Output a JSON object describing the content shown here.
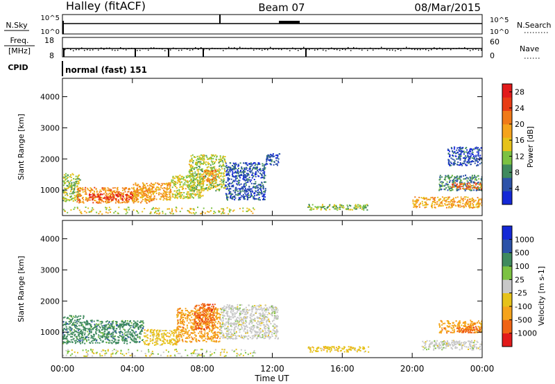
{
  "header": {
    "station": "Halley (fitACF)",
    "beam": "Beam 07",
    "date": "08/Mar/2015"
  },
  "strips": {
    "nsky": {
      "label": "N.Sky",
      "ticks_left": [
        "10^5",
        "10^0"
      ],
      "ticks_right": [
        "10^5",
        "10^0"
      ],
      "right_label": "N.Search"
    },
    "freq": {
      "label": "Freq.",
      "unit": "[MHz]",
      "ticks_left": [
        "18",
        "8"
      ],
      "ticks_right": [
        "60",
        "0"
      ],
      "right_label": "Nave"
    },
    "cpid": {
      "label": "CPID",
      "text": "normal (fast) 151"
    }
  },
  "colors": {
    "power": [
      "#1428d6",
      "#2c52a8",
      "#3f8a5e",
      "#7cc242",
      "#e6c21a",
      "#f5a31c",
      "#f07a18",
      "#e83c14",
      "#e21a1a"
    ],
    "velocity": [
      "#e21a1a",
      "#f06414",
      "#f5a31c",
      "#e6c21a",
      "#c8c8c8",
      "#7cc242",
      "#3f8a5e",
      "#2c52a8",
      "#1428d6"
    ]
  },
  "chart_data": [
    {
      "type": "heatmap",
      "name": "power",
      "xlabel": "",
      "ylabel": "Slant Range [km]",
      "x_ticks": [
        "00:00",
        "04:00",
        "08:00",
        "12:00",
        "16:00",
        "20:00",
        "00:00"
      ],
      "xlim_hours": [
        0,
        24
      ],
      "y_ticks": [
        "1000",
        "2000",
        "3000",
        "4000"
      ],
      "ylim": [
        180,
        4590
      ],
      "colorbar": {
        "label": "Power [dB]",
        "ticks": [
          "4",
          "8",
          "12",
          "16",
          "20",
          "24",
          "28"
        ],
        "range": [
          0,
          30
        ]
      },
      "echo_regions": [
        {
          "t0": 0.0,
          "t1": 1.0,
          "r0": 650,
          "r1": 1550,
          "level": 12
        },
        {
          "t0": 0.8,
          "t1": 5.2,
          "r0": 600,
          "r1": 1100,
          "level": 20
        },
        {
          "t0": 1.5,
          "t1": 4.0,
          "r0": 700,
          "r1": 900,
          "level": 27
        },
        {
          "t0": 4.0,
          "t1": 6.2,
          "r0": 700,
          "r1": 1250,
          "level": 18
        },
        {
          "t0": 6.2,
          "t1": 8.0,
          "r0": 750,
          "r1": 1500,
          "level": 14
        },
        {
          "t0": 7.2,
          "t1": 9.3,
          "r0": 1000,
          "r1": 2150,
          "level": 13
        },
        {
          "t0": 8.0,
          "t1": 8.8,
          "r0": 1250,
          "r1": 1650,
          "level": 20
        },
        {
          "t0": 9.3,
          "t1": 11.6,
          "r0": 700,
          "r1": 1900,
          "level": 5
        },
        {
          "t0": 11.6,
          "t1": 12.4,
          "r0": 1800,
          "r1": 2200,
          "level": 5
        },
        {
          "t0": 14.0,
          "t1": 17.5,
          "r0": 380,
          "r1": 560,
          "level": 12
        },
        {
          "t0": 20.0,
          "t1": 24.0,
          "r0": 450,
          "r1": 800,
          "level": 18
        },
        {
          "t0": 21.5,
          "t1": 24.0,
          "r0": 1000,
          "r1": 1500,
          "level": 8
        },
        {
          "t0": 22.2,
          "t1": 24.0,
          "r0": 1050,
          "r1": 1250,
          "level": 22
        },
        {
          "t0": 22.0,
          "t1": 24.0,
          "r0": 1800,
          "r1": 2400,
          "level": 4
        }
      ]
    },
    {
      "type": "heatmap",
      "name": "velocity",
      "xlabel": "Time UT",
      "ylabel": "Slant Range [km]",
      "x_ticks": [
        "00:00",
        "04:00",
        "08:00",
        "12:00",
        "16:00",
        "20:00",
        "00:00"
      ],
      "xlim_hours": [
        0,
        24
      ],
      "y_ticks": [
        "1000",
        "2000",
        "3000",
        "4000"
      ],
      "ylim": [
        180,
        4590
      ],
      "colorbar": {
        "label": "Velocity [m s-1]",
        "ticks": [
          "-1000",
          "-500",
          "-100",
          "-25",
          "25",
          "100",
          "500",
          "1000"
        ]
      },
      "echo_regions": [
        {
          "t0": 0.0,
          "t1": 1.2,
          "r0": 650,
          "r1": 1550,
          "level": 6
        },
        {
          "t0": 1.2,
          "t1": 4.6,
          "r0": 650,
          "r1": 1400,
          "level": 6
        },
        {
          "t0": 4.6,
          "t1": 6.5,
          "r0": 600,
          "r1": 1100,
          "level": 3
        },
        {
          "t0": 6.5,
          "t1": 9.0,
          "r0": 700,
          "r1": 1800,
          "level": 2
        },
        {
          "t0": 7.5,
          "t1": 8.7,
          "r0": 1100,
          "r1": 1950,
          "level": 1
        },
        {
          "t0": 9.0,
          "t1": 12.3,
          "r0": 800,
          "r1": 1900,
          "level": 4
        },
        {
          "t0": 14.0,
          "t1": 17.5,
          "r0": 380,
          "r1": 560,
          "level": 3
        },
        {
          "t0": 20.5,
          "t1": 24.0,
          "r0": 450,
          "r1": 750,
          "level": 4
        },
        {
          "t0": 21.5,
          "t1": 24.0,
          "r0": 1000,
          "r1": 1400,
          "level": 2
        },
        {
          "t0": 22.5,
          "t1": 24.0,
          "r0": 1000,
          "r1": 1200,
          "level": 1
        }
      ]
    }
  ]
}
